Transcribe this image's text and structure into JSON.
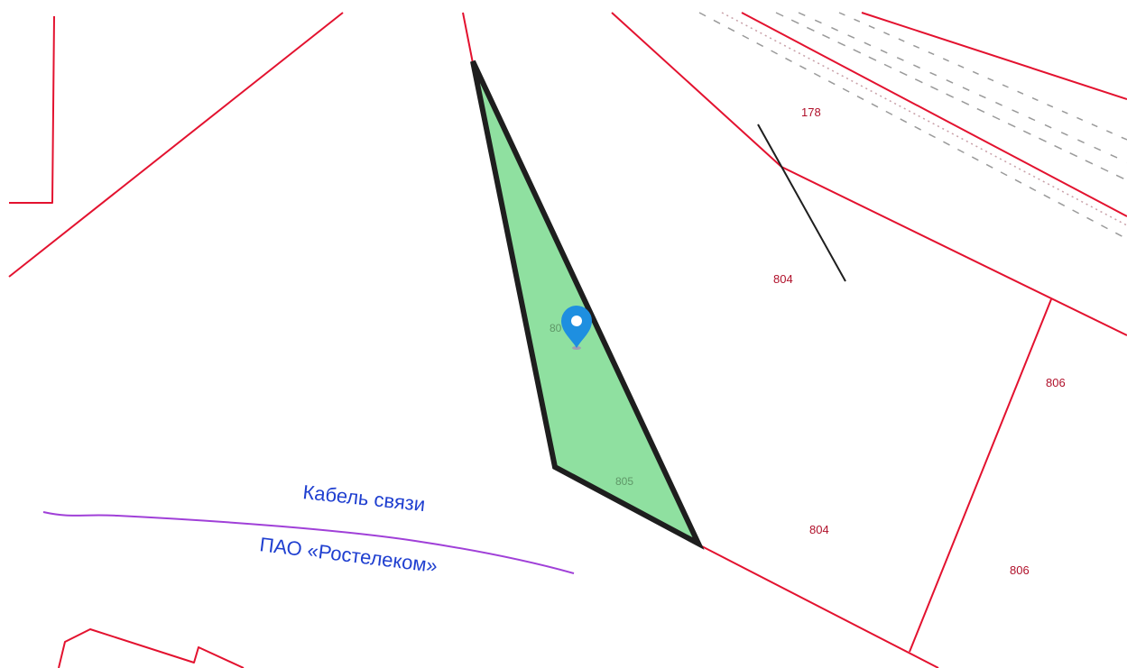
{
  "map": {
    "parcels": [
      {
        "id": "p178",
        "label": "178"
      },
      {
        "id": "p804a",
        "label": "804"
      },
      {
        "id": "p804b",
        "label": "804"
      },
      {
        "id": "p806a",
        "label": "806"
      },
      {
        "id": "p806b",
        "label": "806"
      },
      {
        "id": "p805",
        "label": "805"
      },
      {
        "id": "p80x",
        "label": "80"
      }
    ],
    "cable": {
      "line1": "Кабель связи",
      "line2": "ПАО «Ростелеком»"
    },
    "colors": {
      "boundary": "#e3122f",
      "highlight_fill": "#8fe0a0",
      "highlight_stroke": "#1e1e1e",
      "cable_line": "#a040d8",
      "cable_text": "#1f3fd0",
      "marker": "#1e8fe0"
    },
    "marker_icon": "map-pin-icon"
  }
}
